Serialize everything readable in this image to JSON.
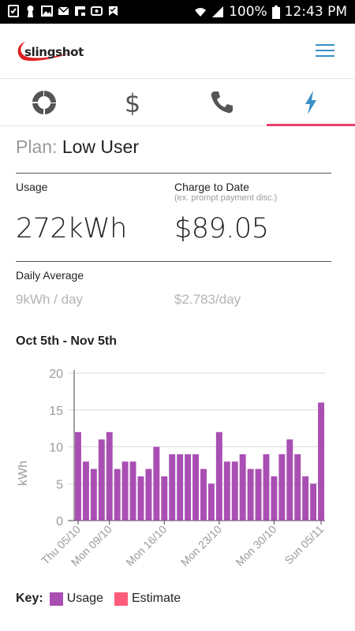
{
  "status": {
    "battery": "100%",
    "time": "12:43 PM"
  },
  "brand": {
    "logo_text": "slingshot"
  },
  "plan": {
    "label": "Plan:",
    "name": "Low User"
  },
  "usage": {
    "label": "Usage",
    "value": "272kWh"
  },
  "charge": {
    "label": "Charge to Date",
    "note": "(ex. prompt payment disc.)",
    "value": "$89.05"
  },
  "daily": {
    "label": "Daily Average",
    "kwh": "9kWh / day",
    "cost": "$2.783/day"
  },
  "chart_title": "Oct 5th - Nov 5th",
  "key": {
    "label": "Key:",
    "usage": "Usage",
    "estimate": "Estimate"
  },
  "colors": {
    "usage": "#a94fb3",
    "estimate": "#ff5c7c",
    "accent": "#e8416b",
    "tab_active": "#3a8fc7",
    "tab_inactive": "#555555"
  },
  "chart_data": {
    "type": "bar",
    "ylabel": "kWh",
    "ylim": [
      0,
      20
    ],
    "yticks": [
      0,
      5,
      10,
      15,
      20
    ],
    "x_tick_labels": [
      {
        "index": 0,
        "label": "Thu 05/10"
      },
      {
        "index": 4,
        "label": "Mon 09/10"
      },
      {
        "index": 11,
        "label": "Mon 16/10"
      },
      {
        "index": 18,
        "label": "Mon 23/10"
      },
      {
        "index": 25,
        "label": "Mon 30/10"
      },
      {
        "index": 31,
        "label": "Sun 05/11"
      }
    ],
    "series": [
      {
        "name": "Usage",
        "values": [
          12,
          8,
          7,
          11,
          12,
          7,
          8,
          8,
          6,
          7,
          10,
          6,
          9,
          9,
          9,
          9,
          7,
          5,
          12,
          8,
          8,
          9,
          7,
          7,
          9,
          6,
          9,
          11,
          9,
          6,
          5,
          16
        ]
      }
    ],
    "grid": true
  }
}
